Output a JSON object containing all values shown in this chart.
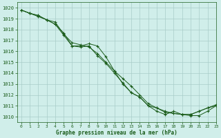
{
  "title": "Graphe pression niveau de la mer (hPa)",
  "background_color": "#d0eeea",
  "grid_color": "#a8ccc8",
  "line_color": "#1a5c1a",
  "marker_color": "#1a5c1a",
  "xlim": [
    -0.5,
    23
  ],
  "ylim": [
    1009.5,
    1020.5
  ],
  "xticks": [
    0,
    1,
    2,
    3,
    4,
    5,
    6,
    7,
    8,
    9,
    10,
    11,
    12,
    13,
    14,
    15,
    16,
    17,
    18,
    19,
    20,
    21,
    22,
    23
  ],
  "yticks": [
    1010,
    1011,
    1012,
    1013,
    1014,
    1015,
    1016,
    1017,
    1018,
    1019,
    1020
  ],
  "series": [
    {
      "x": [
        0,
        1,
        2,
        3,
        4,
        5,
        6,
        7,
        8,
        9,
        10,
        11,
        12,
        13,
        14,
        15,
        16,
        17,
        18,
        19,
        20,
        21,
        22,
        23
      ],
      "y": [
        1019.8,
        1019.5,
        1019.3,
        1018.9,
        1018.5,
        1017.7,
        1016.5,
        1016.4,
        1016.5,
        1015.6,
        1014.9,
        1014.0,
        1013.1,
        1012.2,
        1011.8,
        1011.0,
        1010.8,
        1010.5,
        1010.3,
        1010.2,
        1010.1,
        1010.1,
        1010.5,
        1011.0
      ]
    },
    {
      "x": [
        0,
        1,
        2,
        3,
        4,
        5,
        6,
        7,
        8,
        9,
        10,
        11,
        12,
        13,
        14,
        15,
        16,
        17,
        18,
        19,
        20,
        21,
        22,
        23
      ],
      "y": [
        1019.8,
        1019.5,
        1019.2,
        1018.9,
        1018.7,
        1017.6,
        1016.8,
        1016.6,
        1016.4,
        1015.8,
        1015.0,
        1014.2,
        1013.5,
        1012.8,
        1012.0,
        1011.2,
        1010.8,
        1010.4,
        1010.3,
        1010.2,
        1010.2,
        1010.5,
        1010.8,
        1011.1
      ]
    },
    {
      "x": [
        0,
        1,
        2,
        3,
        4,
        5,
        6,
        7,
        8,
        9,
        10,
        11,
        12,
        13,
        14,
        15,
        16,
        17,
        18,
        19,
        20,
        21,
        22,
        23
      ],
      "y": [
        1019.8,
        1019.5,
        1019.3,
        1018.9,
        1018.5,
        1017.5,
        1016.5,
        1016.5,
        1016.7,
        1016.5,
        1015.5,
        1014.2,
        1013.0,
        1012.2,
        1011.8,
        1011.0,
        1010.5,
        1010.2,
        1010.5,
        1010.2,
        1010.2,
        1010.5,
        1010.8,
        1011.0
      ]
    }
  ]
}
